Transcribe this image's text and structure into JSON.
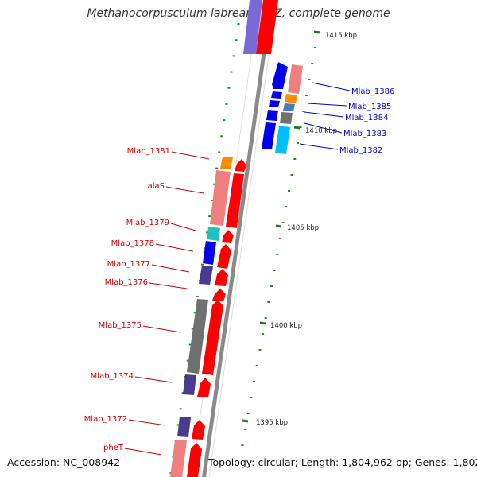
{
  "title": "Methanocorpusculum labreanum Z, complete genome",
  "footer": {
    "accession": "Accession: NC_008942",
    "topology": "Topology: circular; Length: 1,804,962 bp; Genes: 1,802"
  },
  "ticks": [
    {
      "label": "1415 kbp"
    },
    {
      "label": "1410 kbp"
    },
    {
      "label": "1405 kbp"
    },
    {
      "label": "1400 kbp"
    },
    {
      "label": "1395 kbp"
    }
  ],
  "genes_right": [
    {
      "label": "Mlab_1386",
      "color": "#0000cc"
    },
    {
      "label": "Mlab_1385",
      "color": "#0000cc"
    },
    {
      "label": "Mlab_1384",
      "color": "#0000cc"
    },
    {
      "label": "Mlab_1383",
      "color": "#0000cc"
    },
    {
      "label": "Mlab_1382",
      "color": "#0000cc"
    }
  ],
  "genes_left": [
    {
      "label": "Mlab_1381",
      "color": "#cc0000"
    },
    {
      "label": "alaS",
      "color": "#cc0000"
    },
    {
      "label": "Mlab_1379",
      "color": "#cc0000"
    },
    {
      "label": "Mlab_1378",
      "color": "#cc0000"
    },
    {
      "label": "Mlab_1377",
      "color": "#cc0000"
    },
    {
      "label": "Mlab_1376",
      "color": "#cc0000"
    },
    {
      "label": "Mlab_1375",
      "color": "#cc0000"
    },
    {
      "label": "Mlab_1374",
      "color": "#cc0000"
    },
    {
      "label": "Mlab_1372",
      "color": "#cc0000"
    },
    {
      "label": "pheT",
      "color": "#cc0000"
    }
  ]
}
